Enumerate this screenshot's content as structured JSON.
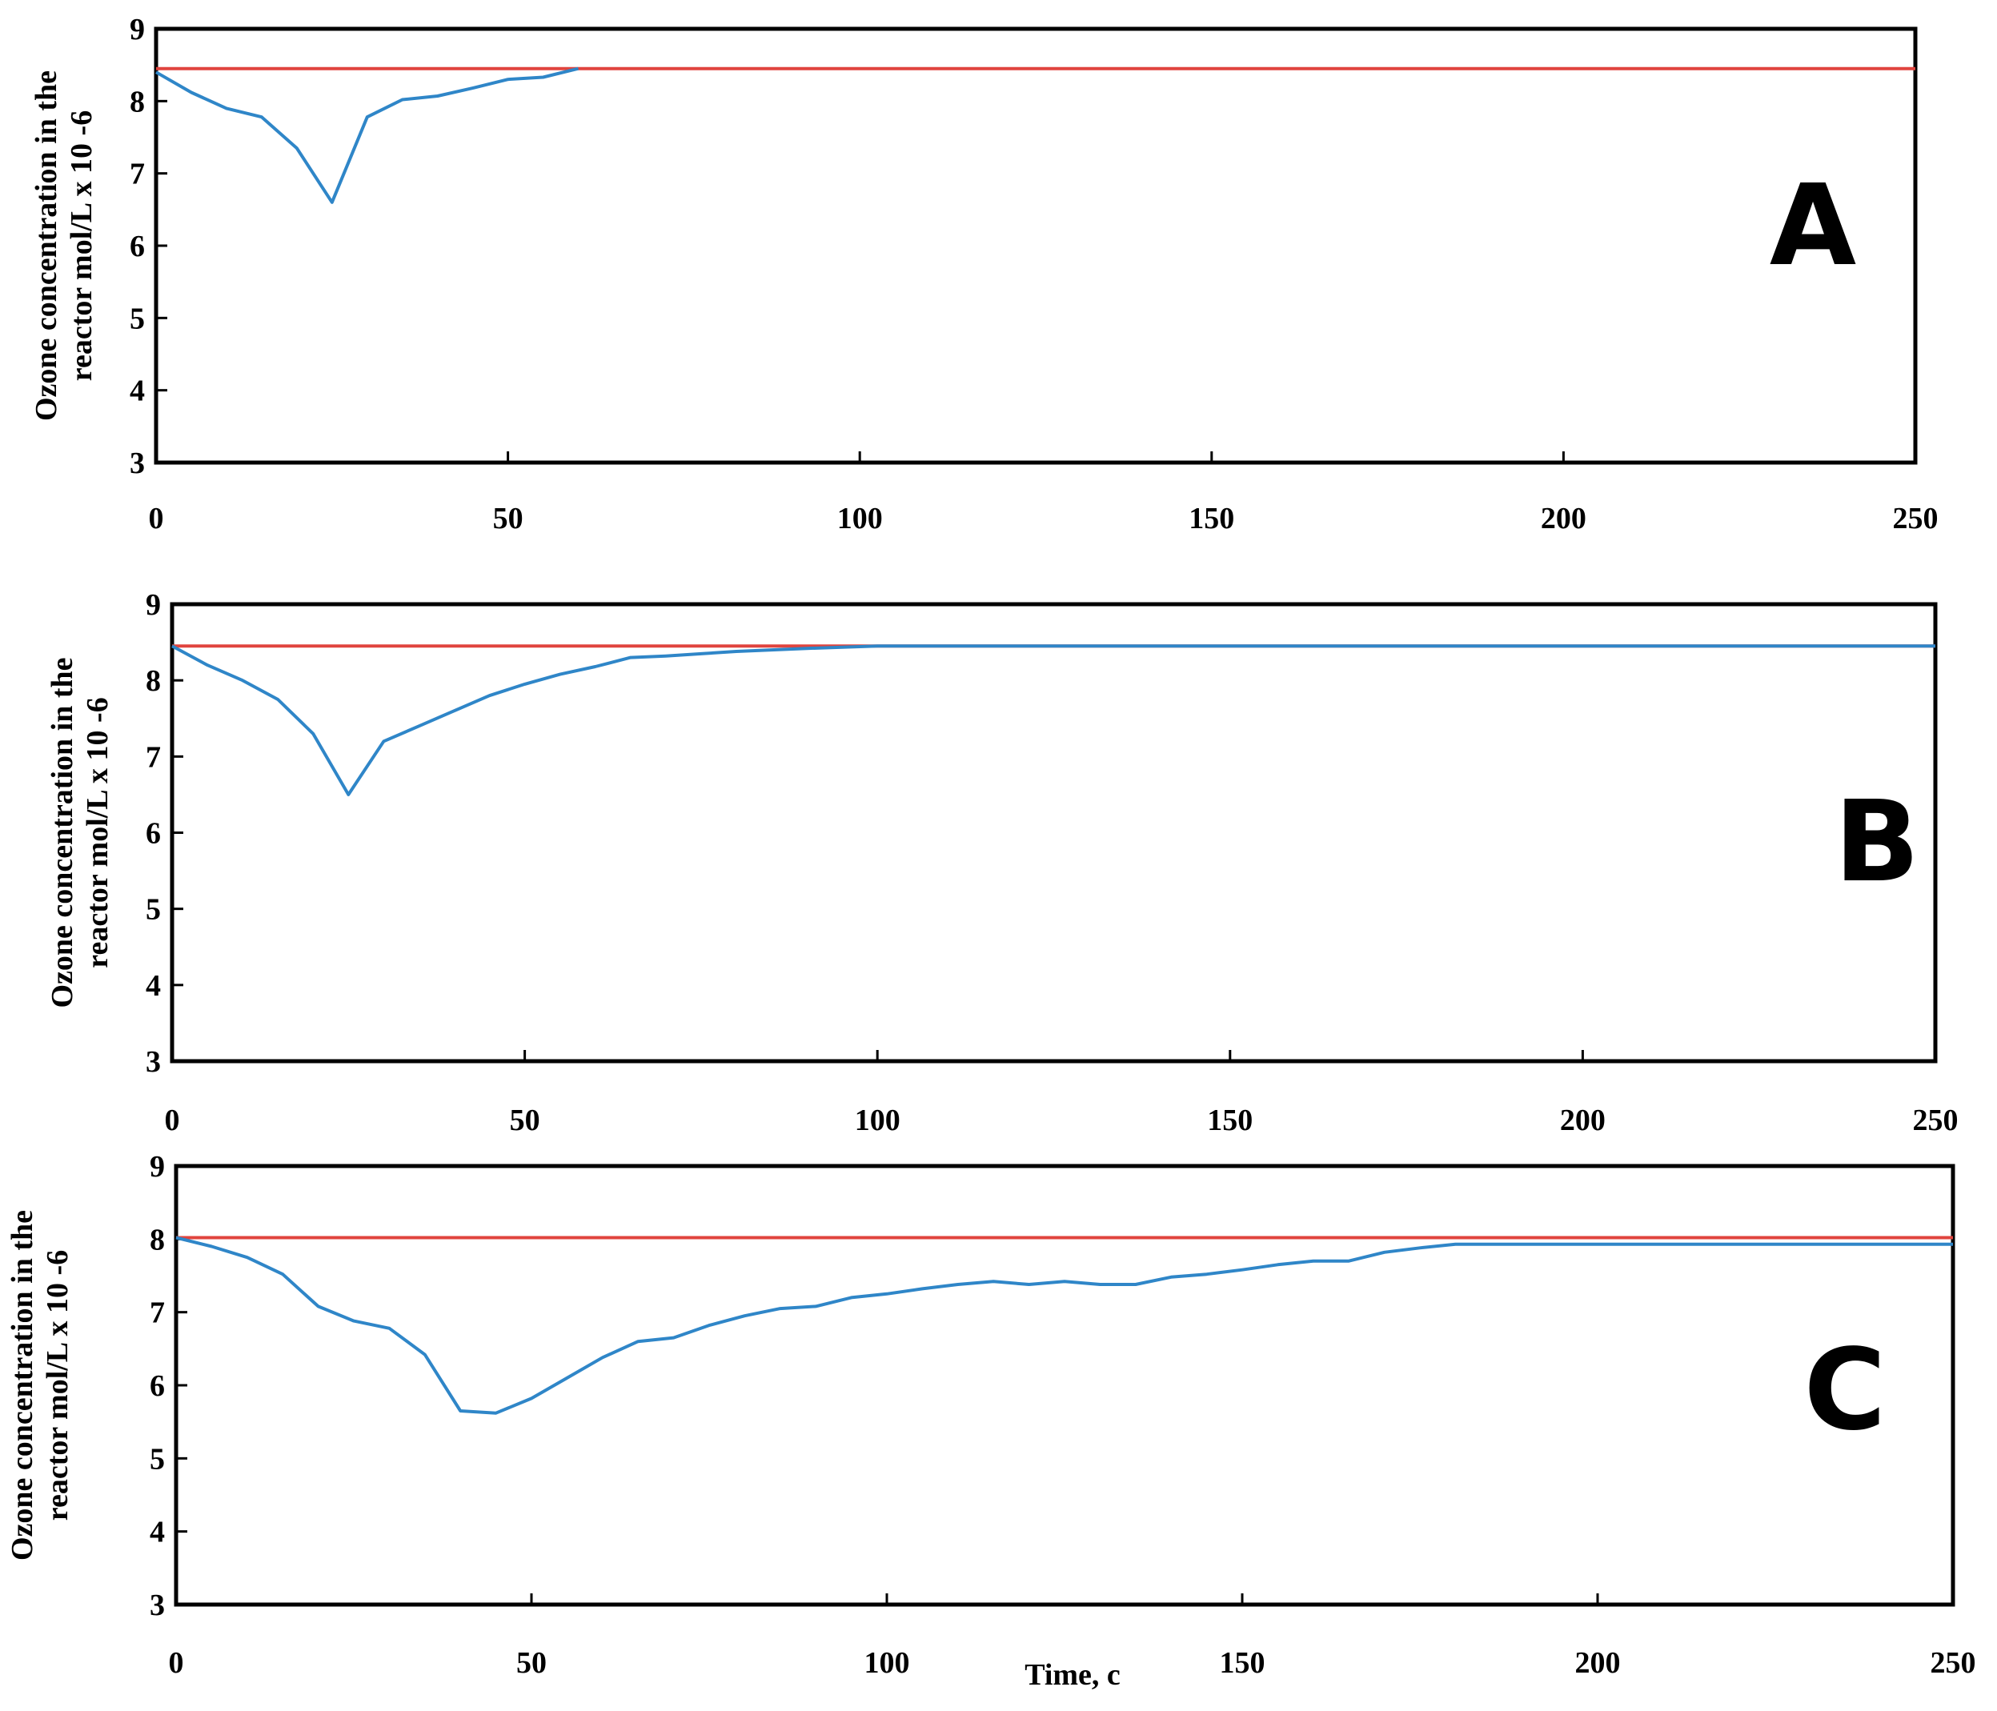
{
  "chart_data": [
    {
      "type": "line",
      "panel_label": "A",
      "ylabel_lines": [
        "Ozone concentration in the",
        "reactor mol/L x 10 -6"
      ],
      "xlabel": "",
      "xlim": [
        0,
        250
      ],
      "ylim": [
        3,
        9
      ],
      "xticks": [
        0,
        50,
        100,
        150,
        200,
        250
      ],
      "yticks": [
        3,
        4,
        5,
        6,
        7,
        8,
        9
      ],
      "series": [
        {
          "color": "#e0443e",
          "x": [
            0,
            250
          ],
          "y": [
            8.45,
            8.45
          ]
        },
        {
          "color": "#2f86c8",
          "x": [
            0,
            5,
            10,
            15,
            20,
            25,
            30,
            35,
            40,
            45,
            50,
            55,
            60
          ],
          "y": [
            8.4,
            8.12,
            7.9,
            7.78,
            7.35,
            6.6,
            7.78,
            8.02,
            8.07,
            8.18,
            8.3,
            8.33,
            8.45
          ]
        }
      ]
    },
    {
      "type": "line",
      "panel_label": "B",
      "ylabel_lines": [
        "Ozone concentration in the",
        "reactor mol/L x 10 -6"
      ],
      "xlabel": "",
      "xlim": [
        0,
        250
      ],
      "ylim": [
        3,
        9
      ],
      "xticks": [
        0,
        50,
        100,
        150,
        200,
        250
      ],
      "yticks": [
        3,
        4,
        5,
        6,
        7,
        8,
        9
      ],
      "series": [
        {
          "color": "#e0443e",
          "x": [
            0,
            250
          ],
          "y": [
            8.45,
            8.45
          ]
        },
        {
          "color": "#2f86c8",
          "x": [
            0,
            5,
            10,
            15,
            20,
            25,
            30,
            35,
            40,
            45,
            50,
            55,
            60,
            65,
            70,
            75,
            80,
            90,
            100,
            250
          ],
          "y": [
            8.45,
            8.2,
            8.0,
            7.75,
            7.3,
            6.5,
            7.2,
            7.4,
            7.6,
            7.8,
            7.95,
            8.08,
            8.18,
            8.3,
            8.32,
            8.35,
            8.38,
            8.42,
            8.45,
            8.45
          ]
        }
      ]
    },
    {
      "type": "line",
      "panel_label": "C",
      "ylabel_lines": [
        "Ozone concentration in the",
        "reactor mol/L x 10 -6"
      ],
      "xlabel": "Time, c",
      "xlim": [
        0,
        250
      ],
      "ylim": [
        3,
        9
      ],
      "xticks": [
        0,
        50,
        100,
        150,
        200,
        250
      ],
      "yticks": [
        3,
        4,
        5,
        6,
        7,
        8,
        9
      ],
      "series": [
        {
          "color": "#e0443e",
          "x": [
            0,
            250
          ],
          "y": [
            8.02,
            8.02
          ]
        },
        {
          "color": "#2f86c8",
          "x": [
            0,
            5,
            10,
            15,
            20,
            25,
            30,
            35,
            40,
            45,
            50,
            55,
            60,
            65,
            70,
            75,
            80,
            85,
            90,
            95,
            100,
            105,
            110,
            115,
            120,
            125,
            130,
            135,
            140,
            145,
            150,
            155,
            160,
            165,
            170,
            175,
            180,
            250
          ],
          "y": [
            8.02,
            7.9,
            7.75,
            7.52,
            7.08,
            6.88,
            6.78,
            6.42,
            5.65,
            5.62,
            5.82,
            6.1,
            6.38,
            6.6,
            6.65,
            6.82,
            6.95,
            7.05,
            7.08,
            7.2,
            7.25,
            7.32,
            7.38,
            7.42,
            7.38,
            7.42,
            7.38,
            7.38,
            7.48,
            7.52,
            7.58,
            7.65,
            7.7,
            7.7,
            7.82,
            7.88,
            7.93,
            7.93
          ]
        }
      ]
    }
  ]
}
